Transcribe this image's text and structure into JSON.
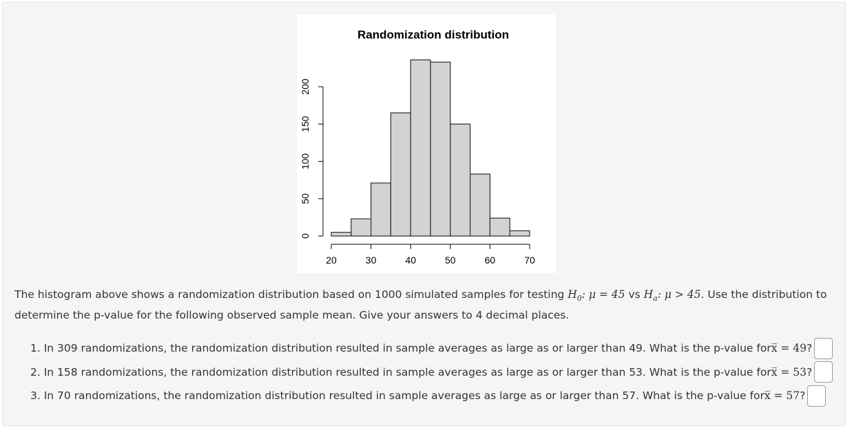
{
  "chart_data": {
    "type": "bar",
    "title": "Randomization distribution",
    "xlabel": "",
    "ylabel": "",
    "bin_edges": [
      20,
      25,
      30,
      35,
      40,
      45,
      50,
      55,
      60,
      65,
      70
    ],
    "values": [
      5,
      23,
      71,
      165,
      236,
      233,
      150,
      83,
      24,
      7
    ],
    "xticks": [
      20,
      30,
      40,
      50,
      60,
      70
    ],
    "yticks": [
      0,
      50,
      100,
      150,
      200
    ],
    "xlim": [
      20,
      70
    ],
    "ylim": [
      0,
      236
    ],
    "bar_color": "#d3d3d3",
    "grid": false
  },
  "prompt": {
    "intro": "The histogram above shows a randomization distribution based on 1000 simulated samples for testing ",
    "h0": "H",
    "h0_sub": "0",
    "h0_rest": ": μ = 45",
    "vs": " vs ",
    "ha": "H",
    "ha_sub": "a",
    "ha_rest": ": μ > 45",
    "outro": ". Use the distribution to determine the p-value for the following observed sample mean. Give your answers to 4 decimal places."
  },
  "questions": [
    {
      "text": "1. In 309 randomizations, the randomization distribution resulted in sample averages as large as or larger than 49. What is the p-value for ",
      "math": "x̅ = 49",
      "end": "?",
      "answer": ""
    },
    {
      "text": "2. In 158 randomizations, the randomization distribution resulted in sample averages as large as or larger than 53. What is the p-value for ",
      "math": "x̅ = 53",
      "end": "?",
      "answer": ""
    },
    {
      "text": "3. In 70 randomizations, the randomization distribution resulted in sample averages as large as or larger than 57. What is the p-value for ",
      "math": "x̅ = 57",
      "end": "?",
      "answer": ""
    }
  ]
}
